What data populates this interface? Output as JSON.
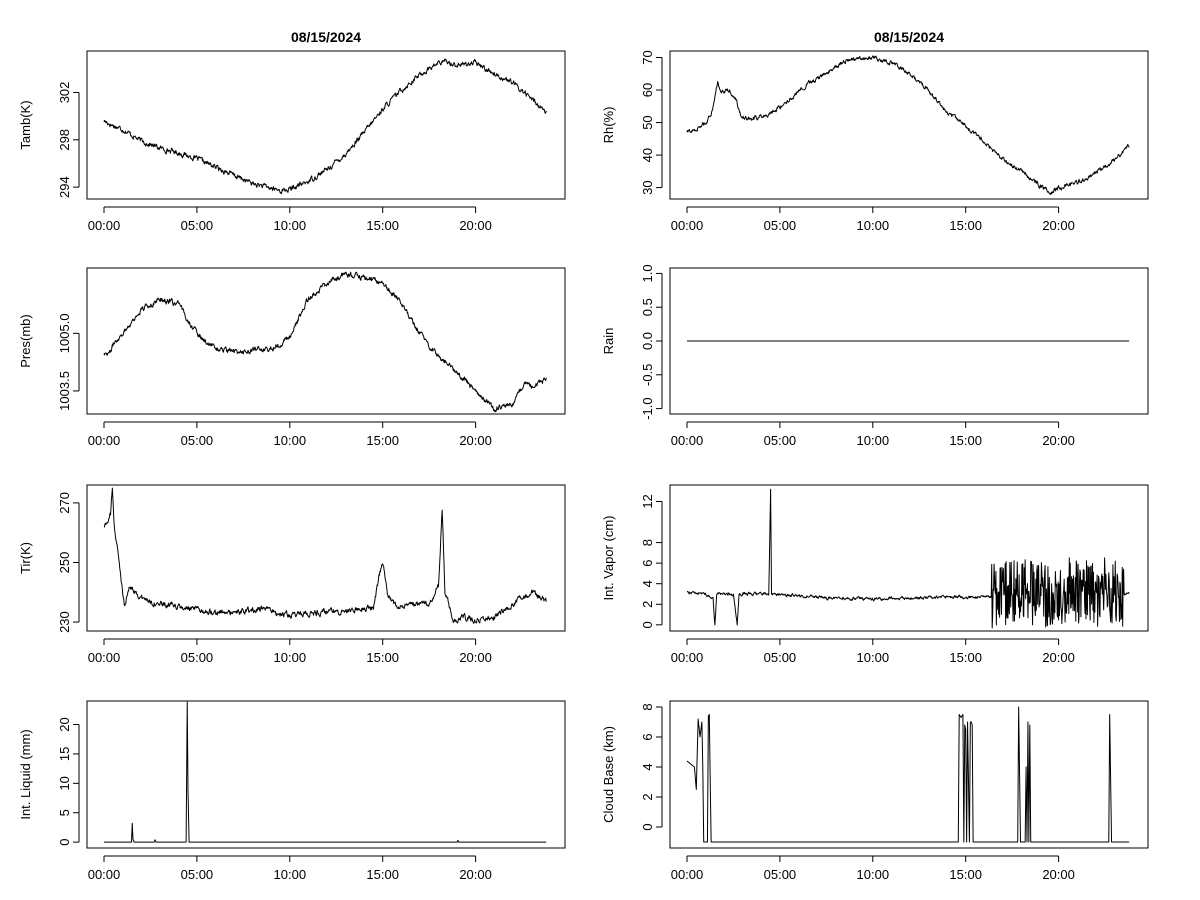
{
  "figure_title": "08/15/2024",
  "chart_data": [
    {
      "id": "tamb",
      "column": 0,
      "row": 0,
      "type": "line",
      "title": "08/15/2024",
      "ylabel": "Tamb(K)",
      "xlabel": "",
      "ylim": [
        293.0,
        305.5
      ],
      "yticks": [
        "294",
        "298",
        "302"
      ],
      "xticks": [
        "00:00",
        "05:00",
        "10:00",
        "15:00",
        "20:00"
      ],
      "x": [
        0,
        0.5,
        1.0,
        1.5,
        2.0,
        3.0,
        4.0,
        5.0,
        6.0,
        7.0,
        8.0,
        9.0,
        9.5,
        10.0,
        11.0,
        12.0,
        13.0,
        14.0,
        15.0,
        16.0,
        17.0,
        18.0,
        18.5,
        19.0,
        20.0,
        21.0,
        22.0,
        23.0,
        23.8
      ],
      "y": [
        299.6,
        299.2,
        298.9,
        298.4,
        297.9,
        297.3,
        296.9,
        296.4,
        295.7,
        295.0,
        294.3,
        293.9,
        293.7,
        293.8,
        294.5,
        295.5,
        296.8,
        298.6,
        300.6,
        302.2,
        303.5,
        304.5,
        304.6,
        304.3,
        304.5,
        303.6,
        302.8,
        301.5,
        300.3
      ],
      "noise": 0.18
    },
    {
      "id": "pres",
      "column": 0,
      "row": 1,
      "type": "line",
      "title": "",
      "ylabel": "Pres(mb)",
      "xlabel": "",
      "ylim": [
        1002.9,
        1006.7
      ],
      "yticks": [
        "1003.5",
        "1005.0"
      ],
      "xticks": [
        "00:00",
        "05:00",
        "10:00",
        "15:00",
        "20:00"
      ],
      "x": [
        0,
        0.3,
        0.6,
        1.0,
        2.0,
        3.0,
        4.0,
        5.0,
        6.0,
        7.0,
        8.0,
        9.0,
        10.0,
        11.0,
        12.0,
        13.0,
        14.0,
        15.0,
        16.0,
        17.0,
        18.0,
        19.0,
        20.0,
        21.0,
        22.0,
        22.6,
        23.0,
        23.8
      ],
      "y": [
        1004.5,
        1004.5,
        1004.8,
        1005.0,
        1005.6,
        1005.9,
        1005.75,
        1005.0,
        1004.6,
        1004.5,
        1004.55,
        1004.6,
        1004.9,
        1005.9,
        1006.3,
        1006.55,
        1006.45,
        1006.3,
        1005.8,
        1005.0,
        1004.4,
        1004.0,
        1003.5,
        1003.05,
        1003.15,
        1003.7,
        1003.6,
        1003.8
      ],
      "noise": 0.06
    },
    {
      "id": "tir",
      "column": 0,
      "row": 2,
      "type": "line",
      "title": "",
      "ylabel": "Tir(K)",
      "xlabel": "",
      "ylim": [
        227,
        276
      ],
      "yticks": [
        "230",
        "250",
        "270"
      ],
      "xticks": [
        "00:00",
        "05:00",
        "10:00",
        "15:00",
        "20:00"
      ],
      "x": [
        0,
        0.2,
        0.35,
        0.45,
        0.55,
        0.7,
        0.9,
        1.1,
        1.4,
        2.0,
        3.0,
        5.0,
        7.0,
        8.5,
        10.0,
        12.0,
        13.5,
        14.5,
        14.8,
        15.0,
        15.3,
        15.6,
        16.5,
        17.5,
        18.0,
        18.2,
        18.35,
        18.5,
        18.8,
        19.3,
        20.0,
        21.0,
        22.0,
        23.0,
        23.8
      ],
      "y": [
        262,
        264,
        266,
        275,
        262,
        256,
        245,
        236,
        242,
        238,
        236,
        234,
        233,
        234.5,
        232,
        233.5,
        234,
        235,
        245,
        250,
        238,
        236,
        235.5,
        236,
        242,
        268,
        240,
        238,
        230,
        232,
        230.5,
        232,
        236,
        240,
        237
      ],
      "noise": 0.8
    },
    {
      "id": "liquid",
      "column": 0,
      "row": 3,
      "type": "line",
      "title": "",
      "ylabel": "Int. Liquid (mm)",
      "xlabel": "",
      "ylim": [
        -1,
        24
      ],
      "yticks": [
        "0",
        "5",
        "10",
        "15",
        "20"
      ],
      "xticks": [
        "00:00",
        "05:00",
        "10:00",
        "15:00",
        "20:00"
      ],
      "x": [
        0,
        1.48,
        1.52,
        1.56,
        1.62,
        2.7,
        2.75,
        2.8,
        4.42,
        4.45,
        4.48,
        4.52,
        4.58,
        19.0,
        19.05,
        19.1,
        23.8
      ],
      "y": [
        0,
        0,
        3.2,
        0.5,
        0,
        0,
        0.4,
        0,
        0,
        12,
        23.8,
        9,
        0,
        0,
        0.3,
        0,
        0
      ],
      "noise": 0
    },
    {
      "id": "rh",
      "column": 1,
      "row": 0,
      "type": "line",
      "title": "08/15/2024",
      "ylabel": "Rh(%)",
      "xlabel": "",
      "ylim": [
        26.5,
        72
      ],
      "yticks": [
        "30",
        "40",
        "50",
        "60",
        "70"
      ],
      "xticks": [
        "00:00",
        "05:00",
        "10:00",
        "15:00",
        "20:00"
      ],
      "x": [
        0,
        0.5,
        1.0,
        1.3,
        1.5,
        1.65,
        1.8,
        2.2,
        2.6,
        2.9,
        3.5,
        4.5,
        5.5,
        6.5,
        7.5,
        8.5,
        9.5,
        10.0,
        11.0,
        12.0,
        13.0,
        14.0,
        15.0,
        16.0,
        17.0,
        18.0,
        19.0,
        19.6,
        20.0,
        21.0,
        22.0,
        23.0,
        23.8
      ],
      "y": [
        47,
        48,
        50,
        52,
        58,
        63,
        59,
        60,
        58,
        52,
        51,
        53,
        57,
        62,
        65,
        69,
        70,
        70,
        68.5,
        65,
        60,
        53,
        49,
        44,
        38.5,
        35,
        30.5,
        28.5,
        30,
        31.5,
        34.5,
        38.5,
        43
      ],
      "noise": 0.55
    },
    {
      "id": "rain",
      "column": 1,
      "row": 1,
      "type": "line",
      "title": "",
      "ylabel": "Rain",
      "xlabel": "",
      "ylim": [
        -1.08,
        1.08
      ],
      "yticks": [
        "-1.0",
        "-0.5",
        "0.0",
        "0.5",
        "1.0"
      ],
      "xticks": [
        "00:00",
        "05:00",
        "10:00",
        "15:00",
        "20:00"
      ],
      "x": [
        0,
        23.8
      ],
      "y": [
        0,
        0
      ],
      "noise": 0
    },
    {
      "id": "vapor",
      "column": 1,
      "row": 2,
      "type": "line",
      "title": "",
      "ylabel": "Int. Vapor (cm)",
      "xlabel": "",
      "ylim": [
        -0.6,
        13.6
      ],
      "yticks": [
        "0",
        "2",
        "4",
        "6",
        "8",
        "12"
      ],
      "xticks": [
        "00:00",
        "05:00",
        "10:00",
        "15:00",
        "20:00"
      ],
      "x": [
        0,
        1.0,
        1.4,
        1.5,
        1.6,
        2.5,
        2.7,
        2.8,
        4.4,
        4.45,
        4.5,
        4.55,
        6.0,
        8.0,
        10.0,
        12.0,
        14.0,
        16.4,
        17.0,
        18.0,
        19.0,
        20.0,
        21.0,
        22.0,
        22.5,
        23.0,
        23.8
      ],
      "y": [
        3.2,
        3.0,
        2.5,
        0,
        3.0,
        3.0,
        0,
        3.0,
        3.0,
        8,
        13.2,
        3.0,
        2.8,
        2.6,
        2.5,
        2.6,
        2.7,
        2.7,
        3.0,
        3.2,
        3.0,
        3.2,
        3.3,
        3.0,
        3.5,
        3.0,
        3.0
      ],
      "noise": 0.12,
      "burst": {
        "from": 16.4,
        "to": 23.5,
        "amplitude": 3.2
      }
    },
    {
      "id": "cloudbase",
      "column": 1,
      "row": 3,
      "type": "line",
      "title": "",
      "ylabel": "Cloud Base (km)",
      "xlabel": "",
      "ylim": [
        -1.4,
        8.4
      ],
      "yticks": [
        "0",
        "2",
        "4",
        "6",
        "8"
      ],
      "xticks": [
        "00:00",
        "05:00",
        "10:00",
        "15:00",
        "20:00"
      ],
      "x": [
        0,
        0.2,
        0.4,
        0.5,
        0.6,
        0.7,
        0.8,
        0.85,
        0.9,
        1.1,
        1.15,
        1.2,
        1.25,
        1.3,
        14.6,
        14.65,
        14.75,
        14.85,
        14.9,
        14.95,
        15.0,
        15.05,
        15.1,
        15.2,
        15.25,
        15.3,
        15.35,
        15.4,
        17.8,
        17.85,
        17.9,
        17.95,
        18.0,
        18.2,
        18.25,
        18.3,
        18.35,
        18.4,
        18.45,
        18.5,
        18.55,
        22.7,
        22.75,
        22.8,
        22.85,
        22.9,
        23.8
      ],
      "y": [
        4.4,
        4.2,
        4.0,
        2.5,
        7.2,
        6.0,
        7.0,
        4.0,
        -1,
        -1,
        7.4,
        7.5,
        3.0,
        -1,
        -1,
        7.5,
        7.3,
        7.5,
        -1,
        6.8,
        6.5,
        -1,
        7.0,
        -1,
        7.0,
        7.0,
        6.8,
        -1,
        -1,
        8.0,
        3.5,
        -1,
        -1,
        -1,
        4.0,
        -1,
        7.0,
        -1,
        6.8,
        -1,
        -1,
        -1,
        7.5,
        3.2,
        -1,
        -1,
        -1
      ],
      "noise": 0
    }
  ]
}
